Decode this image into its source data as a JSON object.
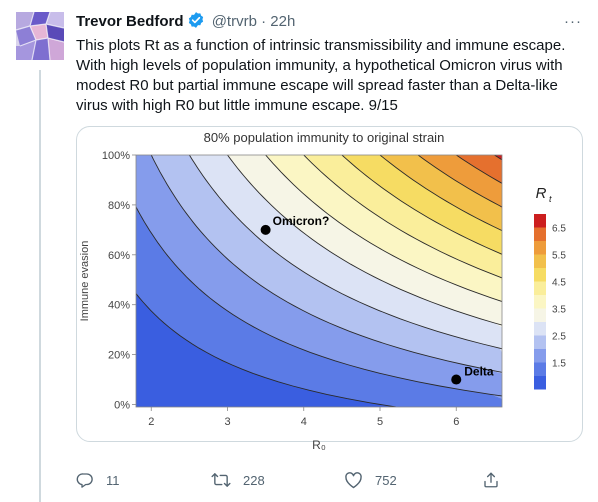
{
  "tweet": {
    "author_name": "Trevor Bedford",
    "handle": "@trvrb",
    "separator": "·",
    "time": "22h",
    "more_glyph": "···",
    "text": "This plots Rt as a function of intrinsic transmissibility and immune escape. With high levels of population immunity, a hypothetical Omicron virus with modest R0 but partial immune escape will spread faster than a Delta-like virus with high R0 but little immune escape. 9/15"
  },
  "actions": {
    "reply_count": "11",
    "retweet_count": "228",
    "like_count": "752"
  },
  "icons": [
    "verified-badge-icon",
    "more-options-icon",
    "reply-icon",
    "retweet-icon",
    "like-icon",
    "share-icon"
  ],
  "colors": {
    "verified_blue": "#1d9bf0",
    "secondary_text": "#536471",
    "rt_low": "#3a5ee0",
    "rt_high": "#cc1f1f"
  },
  "chart_data": {
    "type": "heatmap",
    "title": "80% population immunity to original strain",
    "xlabel": "R₀",
    "ylabel": "Immune evasion",
    "xlim": [
      1.8,
      6.6
    ],
    "ylim": [
      -0.01,
      1.0
    ],
    "x_ticks": [
      {
        "value": 2,
        "label": "2"
      },
      {
        "value": 3,
        "label": "3"
      },
      {
        "value": 4,
        "label": "4"
      },
      {
        "value": 5,
        "label": "5"
      },
      {
        "value": 6,
        "label": "6"
      }
    ],
    "y_ticks": [
      {
        "value": 0,
        "label": "0%"
      },
      {
        "value": 0.2,
        "label": "20%"
      },
      {
        "value": 0.4,
        "label": "40%"
      },
      {
        "value": 0.6,
        "label": "60%"
      },
      {
        "value": 0.8,
        "label": "80%"
      },
      {
        "value": 1.0,
        "label": "100%"
      }
    ],
    "immunity": 0.8,
    "legend_title": "R",
    "legend_title_sub": "t",
    "legend_placement": "right",
    "legend_labels": [
      "6.5",
      "5.5",
      "4.5",
      "3.5",
      "2.5",
      "1.5"
    ],
    "levels": [
      {
        "min": 0.0,
        "max": 1.0,
        "color": "#3a5ee0"
      },
      {
        "min": 1.0,
        "max": 1.5,
        "color": "#5b7be6"
      },
      {
        "min": 1.5,
        "max": 2.0,
        "color": "#859cec"
      },
      {
        "min": 2.0,
        "max": 2.5,
        "color": "#b3c2f1"
      },
      {
        "min": 2.5,
        "max": 3.0,
        "color": "#dce3f5"
      },
      {
        "min": 3.0,
        "max": 3.5,
        "color": "#f6f5e6"
      },
      {
        "min": 3.5,
        "max": 4.0,
        "color": "#fbf6c4"
      },
      {
        "min": 4.0,
        "max": 4.5,
        "color": "#faee9b"
      },
      {
        "min": 4.5,
        "max": 5.0,
        "color": "#f6dc63"
      },
      {
        "min": 5.0,
        "max": 5.5,
        "color": "#f2c04b"
      },
      {
        "min": 5.5,
        "max": 6.0,
        "color": "#ee9c3b"
      },
      {
        "min": 6.0,
        "max": 6.5,
        "color": "#e5702e"
      },
      {
        "min": 6.5,
        "max": 99,
        "color": "#cc1f1f"
      }
    ],
    "points": [
      {
        "name": "Omicron?",
        "x": 3.5,
        "y": 0.7
      },
      {
        "name": "Delta",
        "x": 6.0,
        "y": 0.1
      }
    ],
    "grid": false
  }
}
